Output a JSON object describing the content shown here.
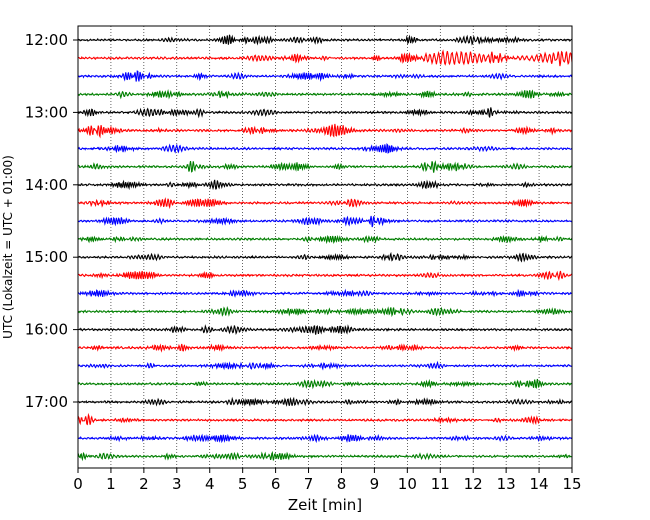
{
  "chart_data": {
    "type": "line",
    "title": "",
    "xlabel": "Zeit  [min]",
    "ylabel": "UTC (Lokalzeit = UTC + 01:00)",
    "xlim": [
      0,
      15
    ],
    "x_ticks": [
      0,
      1,
      2,
      3,
      4,
      5,
      6,
      7,
      8,
      9,
      10,
      11,
      12,
      13,
      14,
      15
    ],
    "x_grid": true,
    "y_tick_labels": [
      "12:00",
      "13:00",
      "14:00",
      "15:00",
      "16:00",
      "17:00"
    ],
    "trace_minutes": 15,
    "first_trace": "12:00",
    "trace_count": 24,
    "color_cycle": [
      "#000000",
      "#ff0000",
      "#0000ff",
      "#007f00"
    ],
    "events": [
      {
        "trace": "12:15",
        "from_min": 10.5,
        "to_min": 15,
        "amplitude": "large"
      }
    ]
  }
}
